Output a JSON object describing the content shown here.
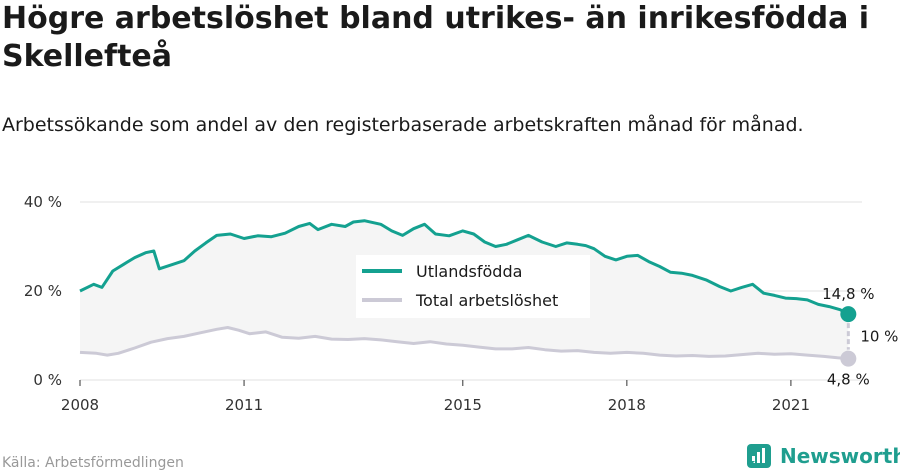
{
  "title": "Högre arbetslöshet bland utrikes- än inrikesfödda i Skellefteå",
  "subtitle": "Arbetssökande som andel av den registerbaserade arbetskraften månad för månad.",
  "source": "Källa: Arbetsförmedlingen",
  "brand": "Newsworthy",
  "colors": {
    "foreign": "#14a190",
    "total": "#cccad6",
    "brand": "#1f9e8f",
    "grid": "#e0e0e0",
    "band": "#f5f5f5"
  },
  "chart_data": {
    "type": "line",
    "xlim": [
      2008,
      2022.3
    ],
    "ylim": [
      0,
      40
    ],
    "y_ticks": [
      0,
      20,
      40
    ],
    "y_tick_labels": [
      "0 %",
      "20 %",
      "40 %"
    ],
    "x_ticks": [
      2008,
      2011,
      2015,
      2018,
      2021
    ],
    "x_tick_labels": [
      "2008",
      "2011",
      "2015",
      "2018",
      "2021"
    ],
    "grid": true,
    "legend_position": "center-right",
    "series": [
      {
        "key": "foreign",
        "name": "Utlandsfödda",
        "points": [
          [
            2008.0,
            20.0
          ],
          [
            2008.25,
            21.5
          ],
          [
            2008.4,
            20.8
          ],
          [
            2008.6,
            24.5
          ],
          [
            2008.8,
            26.0
          ],
          [
            2009.0,
            27.5
          ],
          [
            2009.2,
            28.6
          ],
          [
            2009.35,
            29.0
          ],
          [
            2009.45,
            25.0
          ],
          [
            2009.7,
            26.0
          ],
          [
            2009.9,
            26.8
          ],
          [
            2010.1,
            29.0
          ],
          [
            2010.3,
            30.8
          ],
          [
            2010.5,
            32.5
          ],
          [
            2010.75,
            32.8
          ],
          [
            2011.0,
            31.8
          ],
          [
            2011.25,
            32.4
          ],
          [
            2011.5,
            32.2
          ],
          [
            2011.75,
            33.0
          ],
          [
            2012.0,
            34.5
          ],
          [
            2012.2,
            35.2
          ],
          [
            2012.35,
            33.8
          ],
          [
            2012.6,
            35.0
          ],
          [
            2012.85,
            34.5
          ],
          [
            2013.0,
            35.5
          ],
          [
            2013.2,
            35.8
          ],
          [
            2013.5,
            35.0
          ],
          [
            2013.7,
            33.5
          ],
          [
            2013.9,
            32.5
          ],
          [
            2014.1,
            34.0
          ],
          [
            2014.3,
            35.0
          ],
          [
            2014.5,
            32.8
          ],
          [
            2014.75,
            32.4
          ],
          [
            2015.0,
            33.5
          ],
          [
            2015.2,
            32.8
          ],
          [
            2015.4,
            31.0
          ],
          [
            2015.6,
            30.0
          ],
          [
            2015.8,
            30.5
          ],
          [
            2016.0,
            31.5
          ],
          [
            2016.2,
            32.5
          ],
          [
            2016.45,
            31.0
          ],
          [
            2016.7,
            30.0
          ],
          [
            2016.9,
            30.8
          ],
          [
            2017.1,
            30.5
          ],
          [
            2017.25,
            30.2
          ],
          [
            2017.4,
            29.5
          ],
          [
            2017.6,
            27.8
          ],
          [
            2017.8,
            27.0
          ],
          [
            2018.0,
            27.8
          ],
          [
            2018.2,
            28.0
          ],
          [
            2018.4,
            26.6
          ],
          [
            2018.6,
            25.5
          ],
          [
            2018.8,
            24.2
          ],
          [
            2019.0,
            24.0
          ],
          [
            2019.2,
            23.5
          ],
          [
            2019.45,
            22.5
          ],
          [
            2019.7,
            21.0
          ],
          [
            2019.9,
            20.0
          ],
          [
            2020.1,
            20.8
          ],
          [
            2020.3,
            21.5
          ],
          [
            2020.5,
            19.5
          ],
          [
            2020.7,
            19.0
          ],
          [
            2020.9,
            18.4
          ],
          [
            2021.1,
            18.3
          ],
          [
            2021.3,
            18.0
          ],
          [
            2021.5,
            17.0
          ],
          [
            2021.7,
            16.5
          ],
          [
            2021.9,
            15.8
          ],
          [
            2022.05,
            14.8
          ]
        ],
        "end_label": "14,8 %"
      },
      {
        "key": "total",
        "name": "Total arbetslöshet",
        "points": [
          [
            2008.0,
            6.2
          ],
          [
            2008.3,
            6.0
          ],
          [
            2008.5,
            5.6
          ],
          [
            2008.7,
            6.0
          ],
          [
            2009.0,
            7.2
          ],
          [
            2009.3,
            8.5
          ],
          [
            2009.6,
            9.3
          ],
          [
            2009.9,
            9.8
          ],
          [
            2010.2,
            10.6
          ],
          [
            2010.5,
            11.4
          ],
          [
            2010.7,
            11.8
          ],
          [
            2010.9,
            11.2
          ],
          [
            2011.1,
            10.4
          ],
          [
            2011.4,
            10.8
          ],
          [
            2011.7,
            9.6
          ],
          [
            2012.0,
            9.4
          ],
          [
            2012.3,
            9.8
          ],
          [
            2012.6,
            9.2
          ],
          [
            2012.9,
            9.1
          ],
          [
            2013.2,
            9.3
          ],
          [
            2013.5,
            9.0
          ],
          [
            2013.8,
            8.6
          ],
          [
            2014.1,
            8.2
          ],
          [
            2014.4,
            8.6
          ],
          [
            2014.7,
            8.1
          ],
          [
            2015.0,
            7.8
          ],
          [
            2015.3,
            7.4
          ],
          [
            2015.6,
            7.0
          ],
          [
            2015.9,
            7.0
          ],
          [
            2016.2,
            7.3
          ],
          [
            2016.5,
            6.8
          ],
          [
            2016.8,
            6.5
          ],
          [
            2017.1,
            6.6
          ],
          [
            2017.4,
            6.2
          ],
          [
            2017.7,
            6.0
          ],
          [
            2018.0,
            6.2
          ],
          [
            2018.3,
            6.0
          ],
          [
            2018.6,
            5.6
          ],
          [
            2018.9,
            5.4
          ],
          [
            2019.2,
            5.5
          ],
          [
            2019.5,
            5.3
          ],
          [
            2019.8,
            5.4
          ],
          [
            2020.1,
            5.7
          ],
          [
            2020.4,
            6.0
          ],
          [
            2020.7,
            5.8
          ],
          [
            2021.0,
            5.9
          ],
          [
            2021.3,
            5.6
          ],
          [
            2021.6,
            5.3
          ],
          [
            2021.85,
            5.0
          ],
          [
            2022.05,
            4.8
          ]
        ],
        "end_label": "4,8 %"
      }
    ],
    "difference_label": "10 %"
  }
}
